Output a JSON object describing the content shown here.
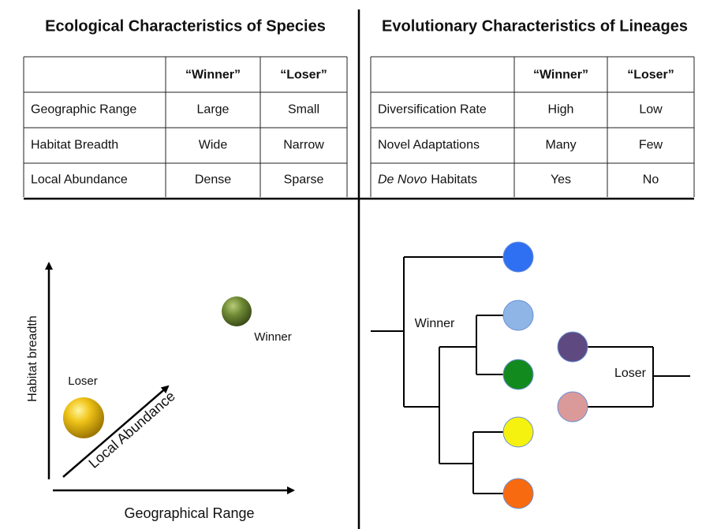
{
  "left": {
    "title": "Ecological Characteristics of Species",
    "table": {
      "header": [
        "“Winner”",
        "“Loser”"
      ],
      "rows": [
        [
          "Geographic Range",
          "Large",
          "Small"
        ],
        [
          "Habitat Breadth",
          "Wide",
          "Narrow"
        ],
        [
          "Local Abundance",
          "Dense",
          "Sparse"
        ]
      ]
    },
    "plot": {
      "y_label": "Habitat breadth",
      "x_label": "Geographical Range",
      "z_label": "Local Abundance",
      "winner": "Winner",
      "loser": "Loser"
    }
  },
  "right": {
    "title": "Evolutionary Characteristics of Lineages",
    "table": {
      "header": [
        "“Winner”",
        "“Loser”"
      ],
      "rows": [
        [
          "Diversification Rate",
          "High",
          "Low"
        ],
        [
          "Novel Adaptations",
          "Many",
          "Few"
        ],
        [
          {
            "italic": "De Novo",
            "rest": "Habitats"
          },
          "Yes",
          "No"
        ]
      ]
    },
    "tree": {
      "winner": "Winner",
      "loser": "Loser"
    }
  }
}
